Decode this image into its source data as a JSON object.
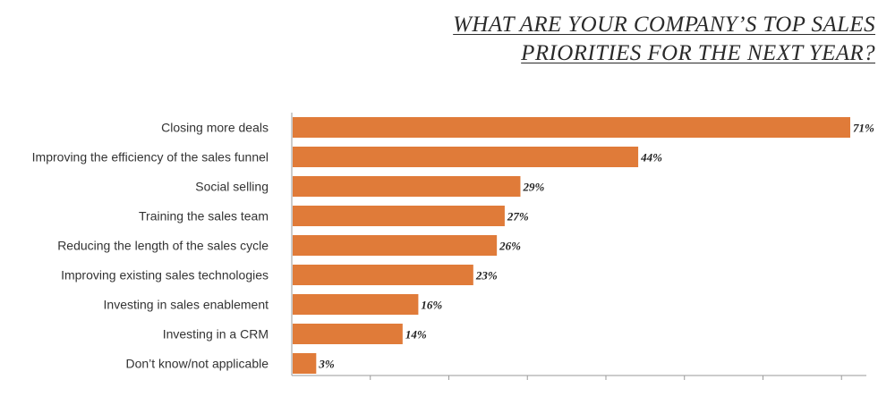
{
  "chart_data": {
    "type": "bar",
    "orientation": "horizontal",
    "title_lines": [
      "WHAT ARE YOUR COMPANY’S TOP SALES",
      "PRIORITIES FOR THE NEXT YEAR?"
    ],
    "categories": [
      "Closing more deals",
      "Improving the efficiency of the sales funnel",
      "Social selling",
      "Training the sales team",
      "Reducing the length of the sales cycle",
      "Improving existing sales technologies",
      "Investing in sales enablement",
      "Investing in a CRM",
      "Don’t know/not applicable"
    ],
    "values": [
      71,
      44,
      29,
      27,
      26,
      23,
      16,
      14,
      3
    ],
    "value_labels": [
      "71%",
      "44%",
      "29%",
      "27%",
      "26%",
      "23%",
      "16%",
      "14%",
      "3%"
    ],
    "xlim": [
      0,
      72
    ],
    "grid": false,
    "bar_color": "#E07B39",
    "axis_color": "#9a9a9a"
  }
}
